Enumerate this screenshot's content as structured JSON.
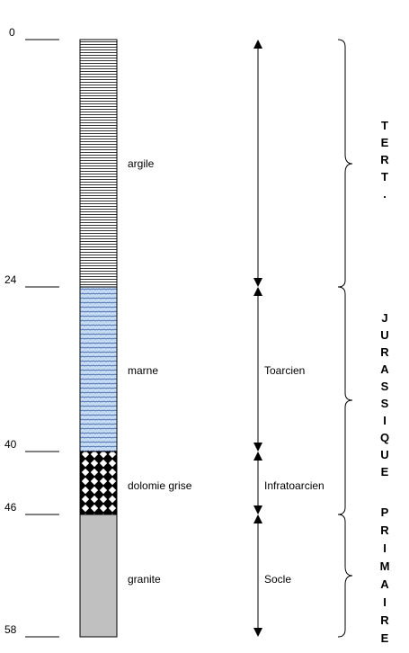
{
  "depth_marks": [
    {
      "value": "0"
    },
    {
      "value": "24"
    },
    {
      "value": "40"
    },
    {
      "value": "46"
    },
    {
      "value": "58"
    }
  ],
  "layers": [
    {
      "name": "argile",
      "pattern": "horizontal-lines",
      "color": "#ffffff"
    },
    {
      "name": "marne",
      "pattern": "blue-diagonal-hatch",
      "color": "#c6dcf5"
    },
    {
      "name": "dolomie grise",
      "pattern": "checkerboard",
      "color": "#000000"
    },
    {
      "name": "granite",
      "pattern": "solid-gray",
      "color": "#c0c0c0"
    }
  ],
  "stages": [
    {
      "name": ""
    },
    {
      "name": "Toarcien"
    },
    {
      "name": "Infratoarcien"
    },
    {
      "name": "Socle"
    }
  ],
  "eras": [
    {
      "letters": [
        "T",
        "E",
        "R",
        "T",
        "."
      ]
    },
    {
      "letters": [
        "J",
        "U",
        "R",
        "A",
        "S",
        "S",
        "I",
        "Q",
        "U",
        "E"
      ]
    },
    {
      "letters": [
        "P",
        "R",
        "I",
        "M",
        "A",
        "I",
        "R",
        "E"
      ]
    }
  ]
}
